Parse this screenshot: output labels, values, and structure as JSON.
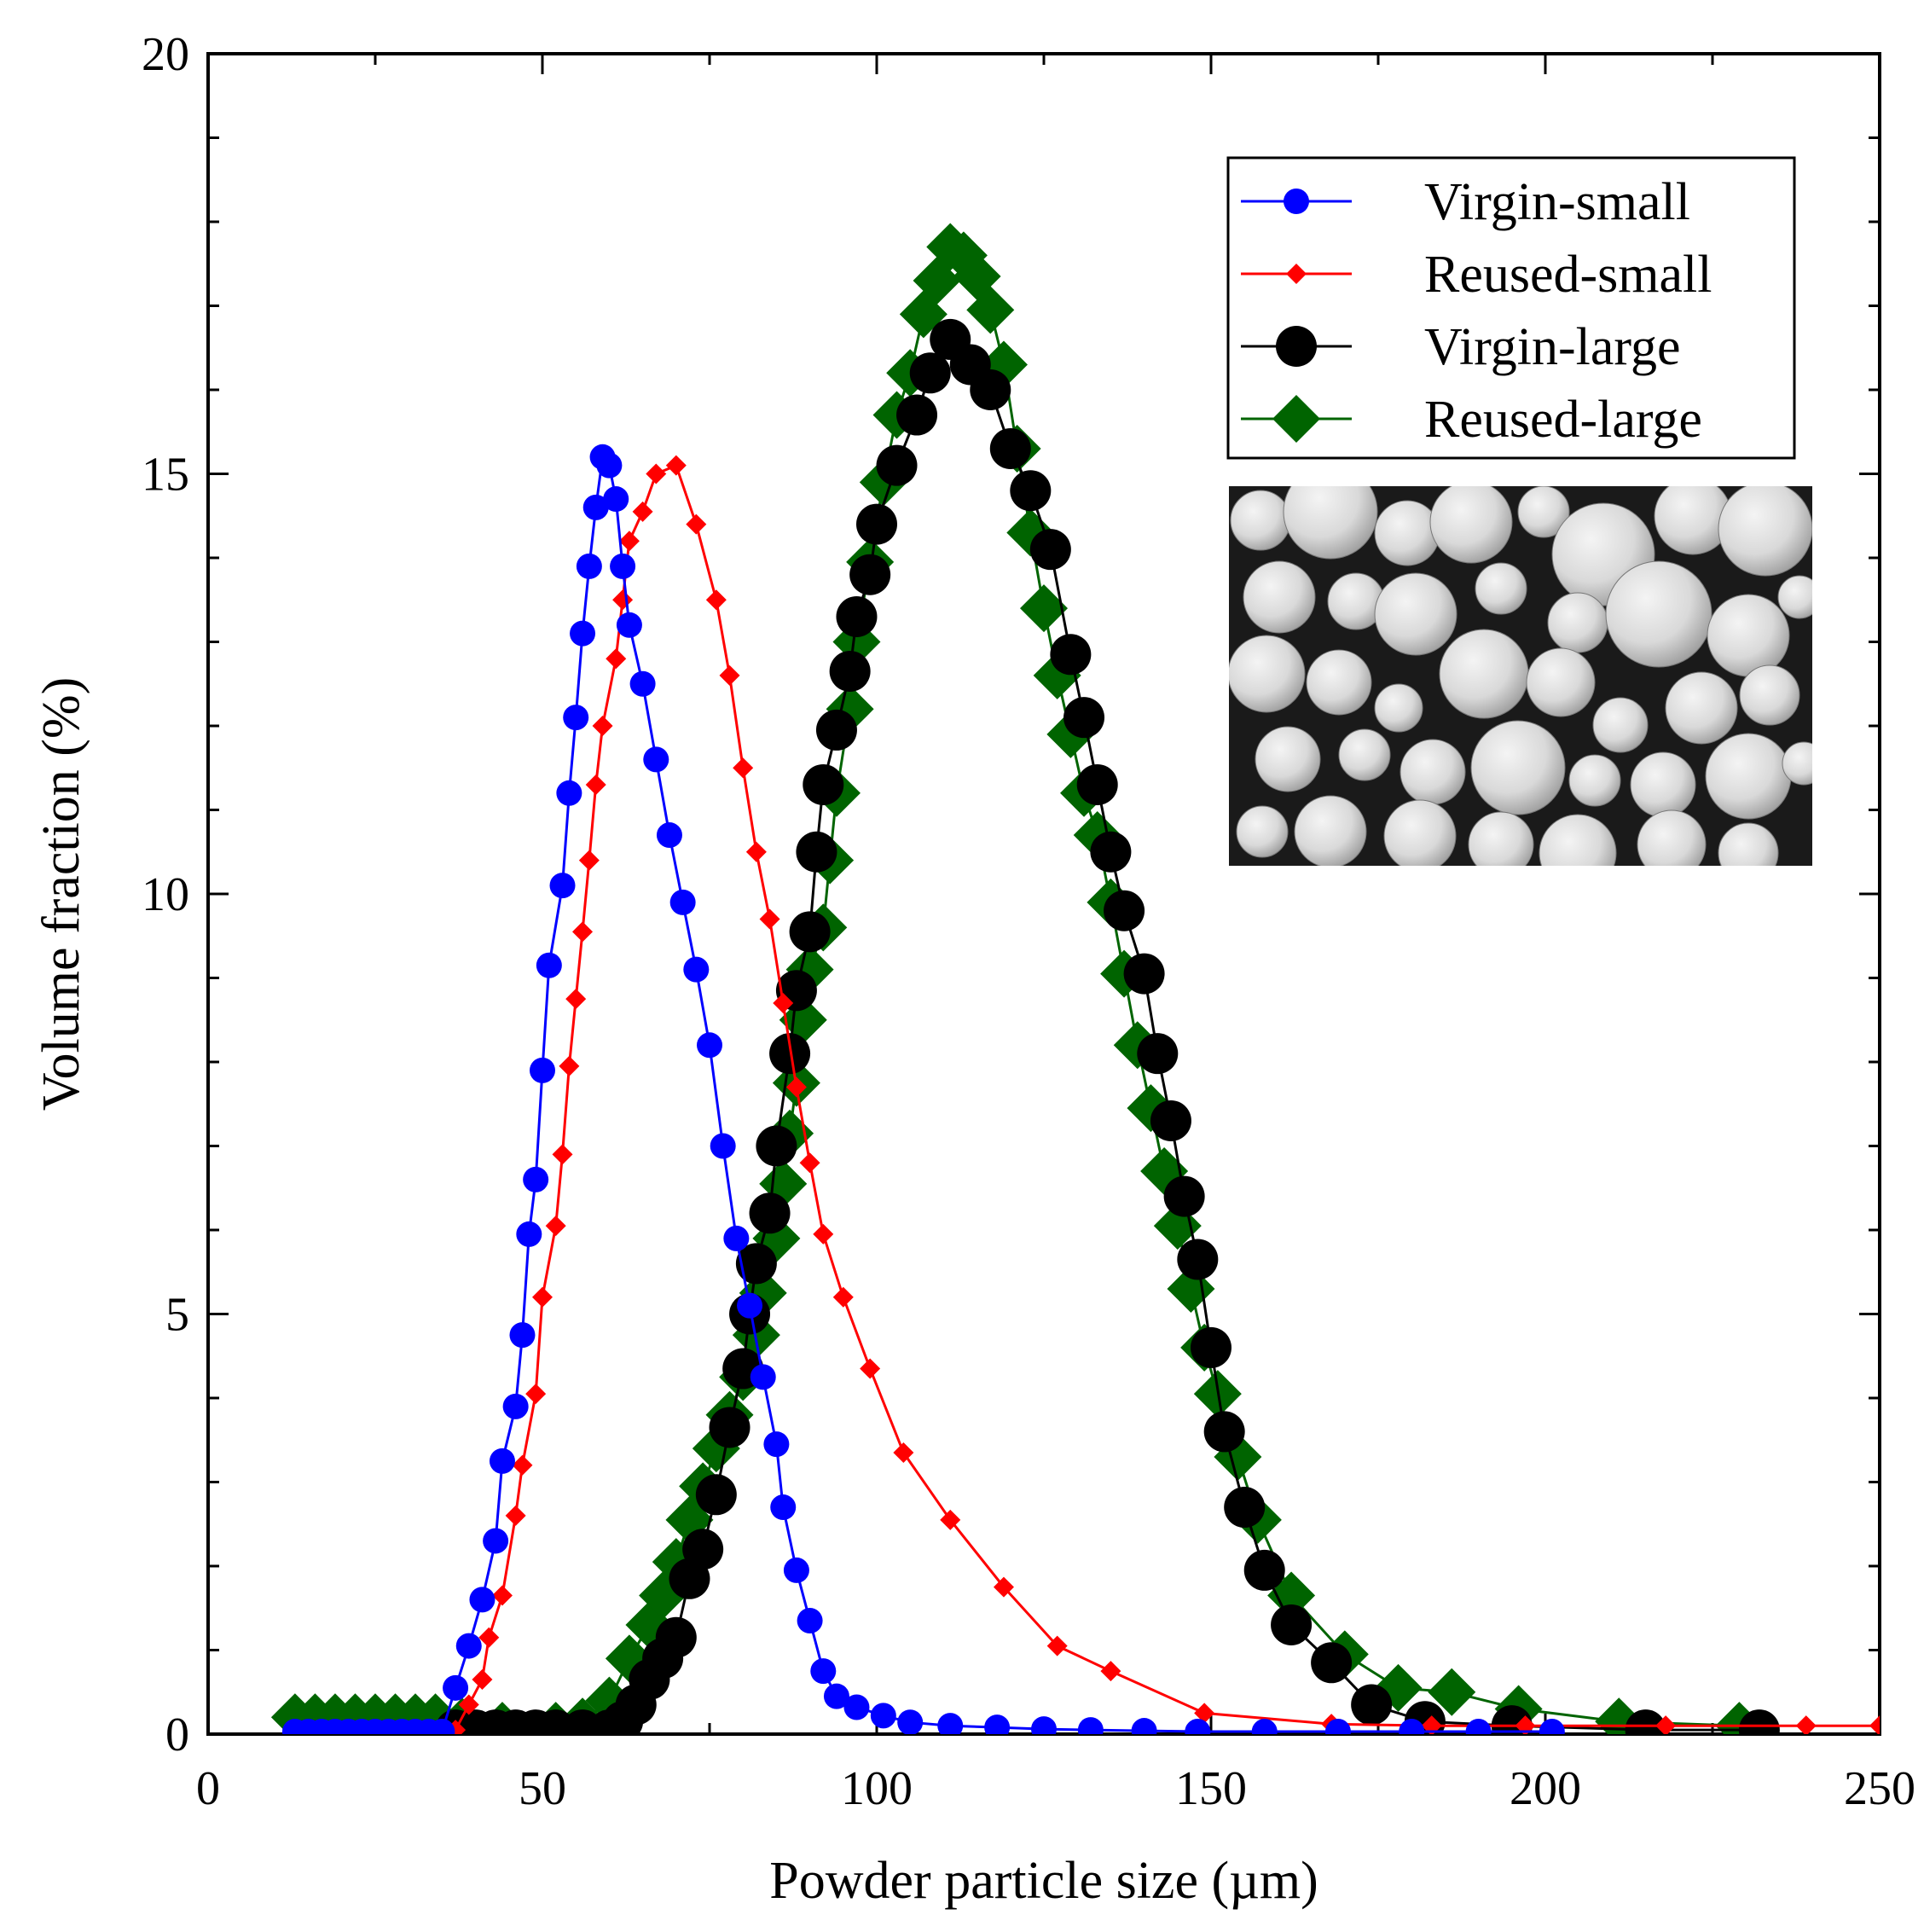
{
  "chart_data": {
    "type": "line",
    "title": "",
    "xlabel": "Powder particle size (µm)",
    "ylabel": "Volume fraction (%)",
    "xlim": [
      0,
      250
    ],
    "ylim": [
      0,
      20
    ],
    "x_ticks": [
      0,
      50,
      100,
      150,
      200,
      250
    ],
    "y_ticks": [
      0,
      5,
      10,
      15,
      20
    ],
    "legend_position": "top-right",
    "inset": "SEM micrograph of spherical powder particles",
    "series": [
      {
        "name": "Virgin-small",
        "color": "#0000ff",
        "marker": "circle",
        "x": [
          13,
          15,
          17,
          19,
          21,
          23,
          25,
          27,
          29,
          31,
          33,
          35,
          37,
          39,
          41,
          43,
          44,
          46,
          47,
          48,
          49,
          50,
          51,
          53,
          54,
          55,
          56,
          57,
          58,
          59,
          60,
          61,
          62,
          63,
          65,
          67,
          69,
          71,
          73,
          75,
          77,
          79,
          81,
          83,
          85,
          86,
          88,
          90,
          92,
          94,
          97,
          101,
          105,
          111,
          118,
          125,
          132,
          140,
          148,
          158,
          169,
          180,
          190,
          201
        ],
        "y": [
          0.03,
          0.03,
          0.03,
          0.03,
          0.03,
          0.03,
          0.03,
          0.03,
          0.03,
          0.03,
          0.03,
          0.03,
          0.55,
          1.05,
          1.6,
          2.3,
          3.25,
          3.9,
          4.75,
          5.95,
          6.6,
          7.9,
          9.15,
          10.1,
          11.2,
          12.1,
          13.1,
          13.9,
          14.6,
          15.2,
          15.1,
          14.7,
          13.9,
          13.2,
          12.5,
          11.6,
          10.7,
          9.9,
          9.1,
          8.2,
          7.0,
          5.9,
          5.1,
          4.25,
          3.45,
          2.7,
          1.95,
          1.35,
          0.75,
          0.45,
          0.32,
          0.22,
          0.14,
          0.1,
          0.08,
          0.06,
          0.05,
          0.04,
          0.03,
          0.03,
          0.03,
          0.03,
          0.03,
          0.03
        ],
        "x_note": "approximate"
      },
      {
        "name": "Reused-small",
        "color": "#ff0000",
        "marker": "diamond",
        "x": [
          37,
          39,
          41,
          42,
          44,
          46,
          47,
          49,
          50,
          52,
          53,
          54,
          55,
          56,
          57,
          58,
          59,
          61,
          62,
          63,
          65,
          67,
          70,
          73,
          76,
          78,
          80,
          82,
          84,
          86,
          88,
          90,
          92,
          95,
          99,
          104,
          111,
          119,
          127,
          135,
          149,
          168,
          183,
          197,
          218,
          239,
          250
        ],
        "y": [
          0.05,
          0.35,
          0.65,
          1.15,
          1.65,
          2.6,
          3.2,
          4.05,
          5.2,
          6.05,
          6.9,
          7.95,
          8.75,
          9.55,
          10.4,
          11.3,
          12.0,
          12.8,
          13.5,
          14.2,
          14.55,
          15.0,
          15.1,
          14.4,
          13.5,
          12.6,
          11.5,
          10.5,
          9.7,
          8.7,
          7.7,
          6.8,
          5.95,
          5.2,
          4.35,
          3.35,
          2.55,
          1.75,
          1.05,
          0.75,
          0.25,
          0.12,
          0.1,
          0.1,
          0.1,
          0.1,
          0.1
        ],
        "x_note": "approximate; y partly reordered to preserve curve shape"
      },
      {
        "name": "Virgin-large",
        "color": "#000000",
        "marker": "circle",
        "x": [
          37,
          40,
          43,
          46,
          49,
          52,
          56,
          60,
          62,
          64,
          66,
          68,
          70,
          72,
          74,
          76,
          78,
          80,
          81,
          82,
          84,
          85,
          87,
          88,
          90,
          91,
          92,
          94,
          96,
          97,
          99,
          100,
          103,
          106,
          108,
          111,
          114,
          117,
          120,
          123,
          126,
          129,
          131,
          133,
          135,
          137,
          140,
          142,
          144,
          146,
          148,
          150,
          152,
          155,
          158,
          162,
          168,
          174,
          182,
          195,
          215,
          232
        ],
        "y": [
          0.05,
          0.05,
          0.05,
          0.05,
          0.05,
          0.05,
          0.05,
          0.05,
          0.15,
          0.35,
          0.65,
          0.9,
          1.15,
          1.85,
          2.2,
          2.85,
          3.65,
          4.35,
          5.0,
          5.6,
          6.2,
          7.0,
          8.1,
          8.85,
          9.55,
          10.5,
          11.3,
          11.95,
          12.65,
          13.3,
          13.8,
          14.4,
          15.1,
          15.7,
          16.2,
          16.6,
          16.3,
          16.0,
          15.3,
          14.8,
          14.1,
          12.85,
          12.1,
          11.3,
          10.5,
          9.8,
          9.05,
          8.1,
          7.3,
          6.4,
          5.65,
          4.6,
          3.6,
          2.7,
          1.95,
          1.3,
          0.85,
          0.35,
          0.15,
          0.1,
          0.05,
          0.05
        ],
        "x_note": "approximate"
      },
      {
        "name": "Reused-large",
        "color": "#006400",
        "marker": "diamond",
        "x": [
          13,
          16,
          19,
          22,
          25,
          28,
          31,
          34,
          38,
          44,
          52,
          56,
          60,
          63,
          66,
          68,
          70,
          72,
          74,
          76,
          78,
          80,
          82,
          83,
          85,
          86,
          87,
          88,
          89,
          90,
          92,
          93,
          94,
          96,
          97,
          99,
          101,
          103,
          105,
          107,
          109,
          111,
          113,
          115,
          117,
          119,
          121,
          123,
          125,
          127,
          129,
          131,
          133,
          135,
          137,
          139,
          141,
          143,
          145,
          147,
          149,
          151,
          154,
          157,
          162,
          170,
          178,
          186,
          196,
          211,
          229
        ],
        "y": [
          0.2,
          0.2,
          0.2,
          0.2,
          0.2,
          0.2,
          0.2,
          0.2,
          0.15,
          0.1,
          0.1,
          0.15,
          0.4,
          0.9,
          1.3,
          1.65,
          2.05,
          2.55,
          2.95,
          3.4,
          3.8,
          4.25,
          4.75,
          5.25,
          5.9,
          6.55,
          7.15,
          7.75,
          8.5,
          9.1,
          9.6,
          10.4,
          11.2,
          12.2,
          13.0,
          13.95,
          14.9,
          15.7,
          16.2,
          16.9,
          17.3,
          17.7,
          17.6,
          17.35,
          16.95,
          16.3,
          15.3,
          14.3,
          13.4,
          12.6,
          11.9,
          11.2,
          10.7,
          9.9,
          9.05,
          8.2,
          7.45,
          6.7,
          6.05,
          5.3,
          4.6,
          4.05,
          3.3,
          2.55,
          1.65,
          0.95,
          0.55,
          0.5,
          0.3,
          0.15,
          0.1
        ],
        "x_note": "approximate"
      }
    ]
  }
}
